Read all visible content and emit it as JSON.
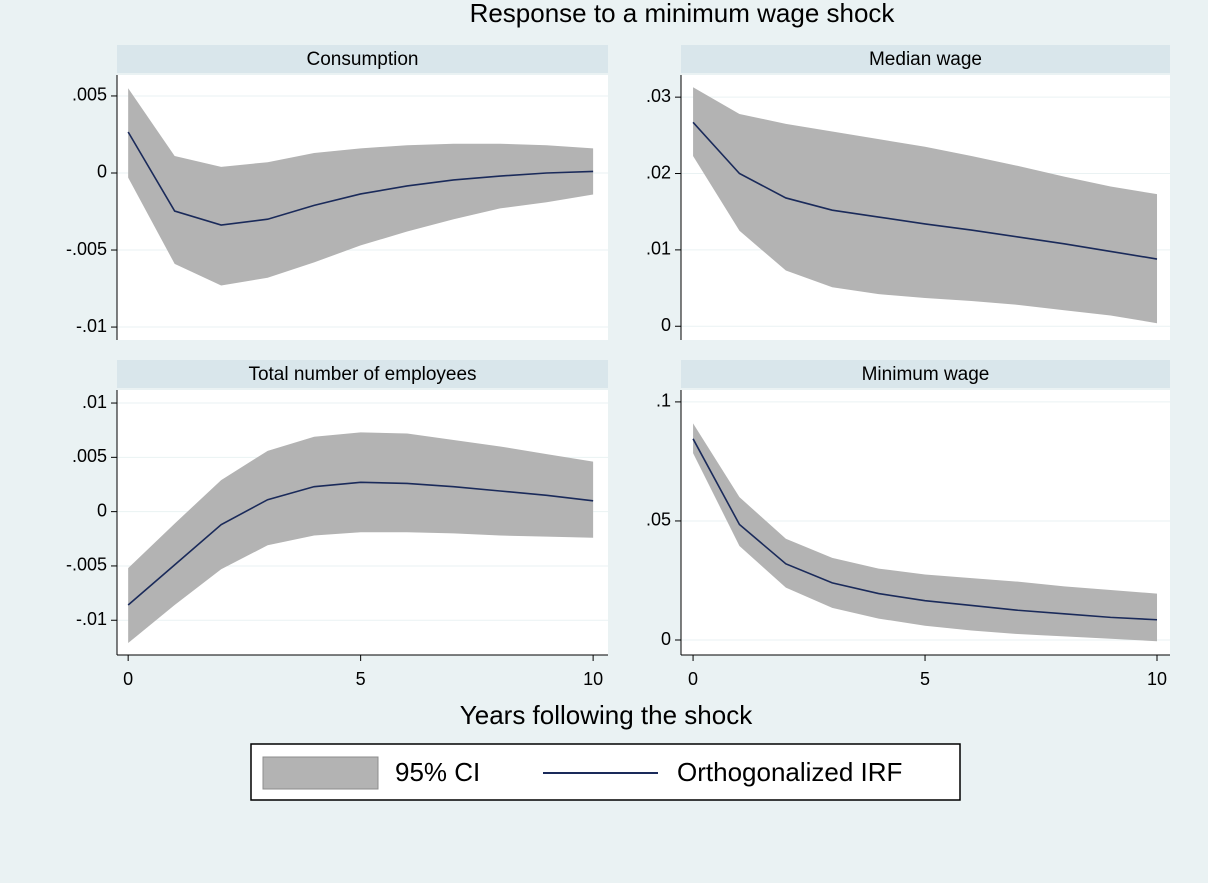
{
  "title": "Response to a minimum wage shock",
  "x_label": "Years following the shock",
  "chart_data": [
    {
      "type": "line",
      "title": "Consumption",
      "x": [
        0,
        1,
        2,
        3,
        4,
        5,
        6,
        7,
        8,
        9,
        10
      ],
      "xlim": [
        -0.24,
        10.32
      ],
      "xticks": [
        0,
        5,
        10
      ],
      "ylim": [
        -0.01084,
        0.00636
      ],
      "yticks": [
        {
          "value": 0.005,
          "label": ".005"
        },
        0,
        {
          "value": -0.005,
          "label": "-.005"
        },
        {
          "value": -0.01,
          "label": "-.01"
        }
      ],
      "grid": true,
      "series": [
        {
          "name": "95% CI",
          "color": "#b3b3b3",
          "upper": [
            0.0055,
            0.0011,
            0.0004,
            0.0007,
            0.0013,
            0.0016,
            0.0018,
            0.0019,
            0.0019,
            0.0018,
            0.0016
          ],
          "lower": [
            -0.0003,
            -0.0059,
            -0.0073,
            -0.0068,
            -0.0058,
            -0.0047,
            -0.0038,
            -0.003,
            -0.0023,
            -0.0019,
            -0.0014
          ]
        },
        {
          "name": "Orthogonalized IRF",
          "color": "#1a2a5a",
          "values": [
            0.00266,
            -0.00247,
            -0.00338,
            -0.003,
            -0.0021,
            -0.00136,
            -0.00084,
            -0.00045,
            -0.0002,
            0,
            0.0001
          ]
        }
      ]
    },
    {
      "type": "line",
      "title": "Median wage",
      "x": [
        0,
        1,
        2,
        3,
        4,
        5,
        6,
        7,
        8,
        9,
        10
      ],
      "xlim": [
        -0.26,
        10.28
      ],
      "xticks": [
        0,
        5,
        10
      ],
      "ylim": [
        -0.0018,
        0.0329
      ],
      "yticks": [
        {
          "value": 0.03,
          "label": ".03"
        },
        {
          "value": 0.02,
          "label": ".02"
        },
        {
          "value": 0.01,
          "label": ".01"
        },
        0
      ],
      "grid": true,
      "series": [
        {
          "name": "95% CI",
          "color": "#b3b3b3",
          "upper": [
            0.0313,
            0.0278,
            0.0265,
            0.0255,
            0.0245,
            0.0235,
            0.0223,
            0.021,
            0.0196,
            0.0183,
            0.0173
          ],
          "lower": [
            0.0223,
            0.0125,
            0.0073,
            0.0051,
            0.0042,
            0.0037,
            0.0033,
            0.0028,
            0.0021,
            0.0014,
            0.0004
          ]
        },
        {
          "name": "Orthogonalized IRF",
          "color": "#1a2a5a",
          "values": [
            0.0267,
            0.02,
            0.0168,
            0.0152,
            0.0143,
            0.0134,
            0.0126,
            0.0117,
            0.0108,
            0.0098,
            0.0088
          ]
        }
      ]
    },
    {
      "type": "line",
      "title": "Total number of employees",
      "x": [
        0,
        1,
        2,
        3,
        4,
        5,
        6,
        7,
        8,
        9,
        10
      ],
      "xlim": [
        -0.24,
        10.32
      ],
      "xticks": [
        0,
        5,
        10
      ],
      "ylim": [
        -0.0132,
        0.0112
      ],
      "yticks": [
        {
          "value": 0.01,
          "label": ".01"
        },
        {
          "value": 0.005,
          "label": ".005"
        },
        0,
        {
          "value": -0.005,
          "label": "-.005"
        },
        {
          "value": -0.01,
          "label": "-.01"
        }
      ],
      "grid": true,
      "series": [
        {
          "name": "95% CI",
          "color": "#b3b3b3",
          "upper": [
            -0.0052,
            -0.0011,
            0.0029,
            0.0056,
            0.0069,
            0.0073,
            0.0072,
            0.0066,
            0.006,
            0.0053,
            0.0046
          ],
          "lower": [
            -0.0121,
            -0.0086,
            -0.0053,
            -0.0031,
            -0.0022,
            -0.0019,
            -0.0019,
            -0.002,
            -0.0022,
            -0.0023,
            -0.0024
          ]
        },
        {
          "name": "Orthogonalized IRF",
          "color": "#1a2a5a",
          "values": [
            -0.0086,
            -0.0049,
            -0.0012,
            0.0011,
            0.0023,
            0.0027,
            0.0026,
            0.0023,
            0.0019,
            0.0015,
            0.001
          ]
        }
      ]
    },
    {
      "type": "line",
      "title": "Minimum wage",
      "x": [
        0,
        1,
        2,
        3,
        4,
        5,
        6,
        7,
        8,
        9,
        10
      ],
      "xlim": [
        -0.26,
        10.28
      ],
      "xticks": [
        0,
        5,
        10
      ],
      "ylim": [
        -0.0063,
        0.105
      ],
      "yticks": [
        {
          "value": 0.1,
          "label": ".1"
        },
        {
          "value": 0.05,
          "label": ".05"
        },
        0
      ],
      "grid": true,
      "series": [
        {
          "name": "95% CI",
          "color": "#b3b3b3",
          "upper": [
            0.091,
            0.06,
            0.0425,
            0.0345,
            0.03,
            0.0275,
            0.026,
            0.0245,
            0.0225,
            0.021,
            0.0195
          ],
          "lower": [
            0.0785,
            0.0395,
            0.022,
            0.0135,
            0.009,
            0.006,
            0.004,
            0.0025,
            0.0015,
            0.0005,
            -0.0005
          ]
        },
        {
          "name": "Orthogonalized IRF",
          "color": "#1a2a5a",
          "values": [
            0.0845,
            0.0485,
            0.032,
            0.024,
            0.0195,
            0.0165,
            0.0145,
            0.0125,
            0.011,
            0.0095,
            0.0085
          ]
        }
      ]
    }
  ]
}
